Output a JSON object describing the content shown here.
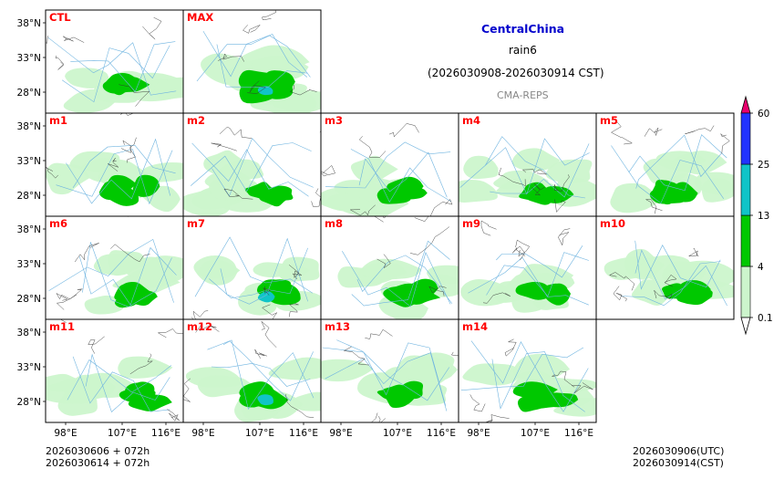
{
  "header": {
    "region": "CentralChina",
    "variable": "rain6",
    "period": "(2026030908-2026030914 CST)",
    "source": "CMA-REPS"
  },
  "footer": {
    "init_utc": "2026030606  +  072h",
    "init_cst": "2026030614  +  072h",
    "valid_utc": "2026030906(UTC)",
    "valid_cst": "2026030914(CST)"
  },
  "chart_data": {
    "type": "heatmap",
    "description_axes": {
      "lon_ticks": [
        "98°E",
        "107°E",
        "116°E"
      ],
      "lat_ticks": [
        "38°N",
        "33°N",
        "28°N"
      ]
    },
    "panels": [
      {
        "name": "CTL",
        "row": 0,
        "col": 0
      },
      {
        "name": "MAX",
        "row": 0,
        "col": 1
      },
      {
        "name": "m1",
        "row": 1,
        "col": 0
      },
      {
        "name": "m2",
        "row": 1,
        "col": 1
      },
      {
        "name": "m3",
        "row": 1,
        "col": 2
      },
      {
        "name": "m4",
        "row": 1,
        "col": 3
      },
      {
        "name": "m5",
        "row": 1,
        "col": 4
      },
      {
        "name": "m6",
        "row": 2,
        "col": 0
      },
      {
        "name": "m7",
        "row": 2,
        "col": 1
      },
      {
        "name": "m8",
        "row": 2,
        "col": 2
      },
      {
        "name": "m9",
        "row": 2,
        "col": 3
      },
      {
        "name": "m10",
        "row": 2,
        "col": 4
      },
      {
        "name": "m11",
        "row": 3,
        "col": 0
      },
      {
        "name": "m12",
        "row": 3,
        "col": 1
      },
      {
        "name": "m13",
        "row": 3,
        "col": 2
      },
      {
        "name": "m14",
        "row": 3,
        "col": 3
      }
    ],
    "colorbar": {
      "levels": [
        "0.1",
        "4",
        "13",
        "25",
        "60"
      ],
      "colors": [
        "#ccf5cc",
        "#00c800",
        "#10c4c8",
        "#2233ff"
      ],
      "over_color": "#e8006e",
      "under_color": "#ffffff"
    },
    "colors": {
      "panel_label": "#ff0000",
      "river": "#6fb4e0",
      "border": "#333333"
    }
  }
}
